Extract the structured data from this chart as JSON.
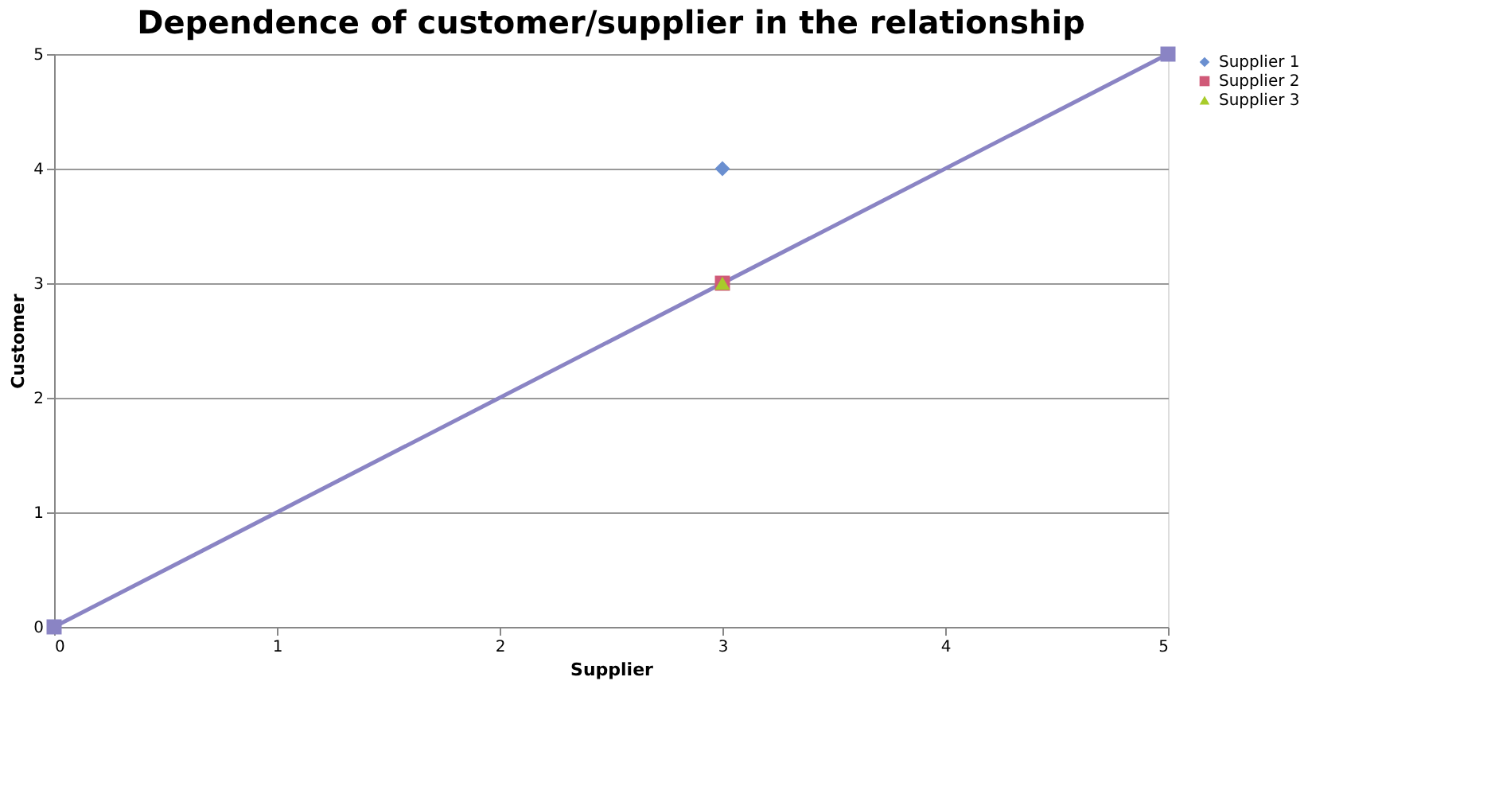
{
  "chart_data": {
    "type": "scatter",
    "title": "Dependence of customer/supplier in the relationship",
    "xlabel": "Supplier",
    "ylabel": "Customer",
    "xlim": [
      0,
      5
    ],
    "xticks": [
      0,
      1,
      2,
      3,
      4,
      5
    ],
    "ylim": [
      0,
      5
    ],
    "yticks": [
      0,
      1,
      2,
      3,
      4,
      5
    ],
    "grid": "y",
    "legend": "right",
    "series": [
      {
        "type": "line",
        "color": "#8a84c4",
        "marker": "square",
        "x": [
          0,
          5
        ],
        "values": [
          0,
          5
        ]
      },
      {
        "name": "Supplier 1",
        "color": "#6a8fd0",
        "marker": "diamond",
        "x": [
          3
        ],
        "values": [
          4
        ]
      },
      {
        "name": "Supplier 2",
        "color": "#d05a78",
        "marker": "square",
        "x": [
          3
        ],
        "values": [
          3
        ]
      },
      {
        "name": "Supplier 3",
        "color": "#a8cc2a",
        "marker": "triangle",
        "x": [
          3
        ],
        "values": [
          3
        ]
      }
    ]
  }
}
